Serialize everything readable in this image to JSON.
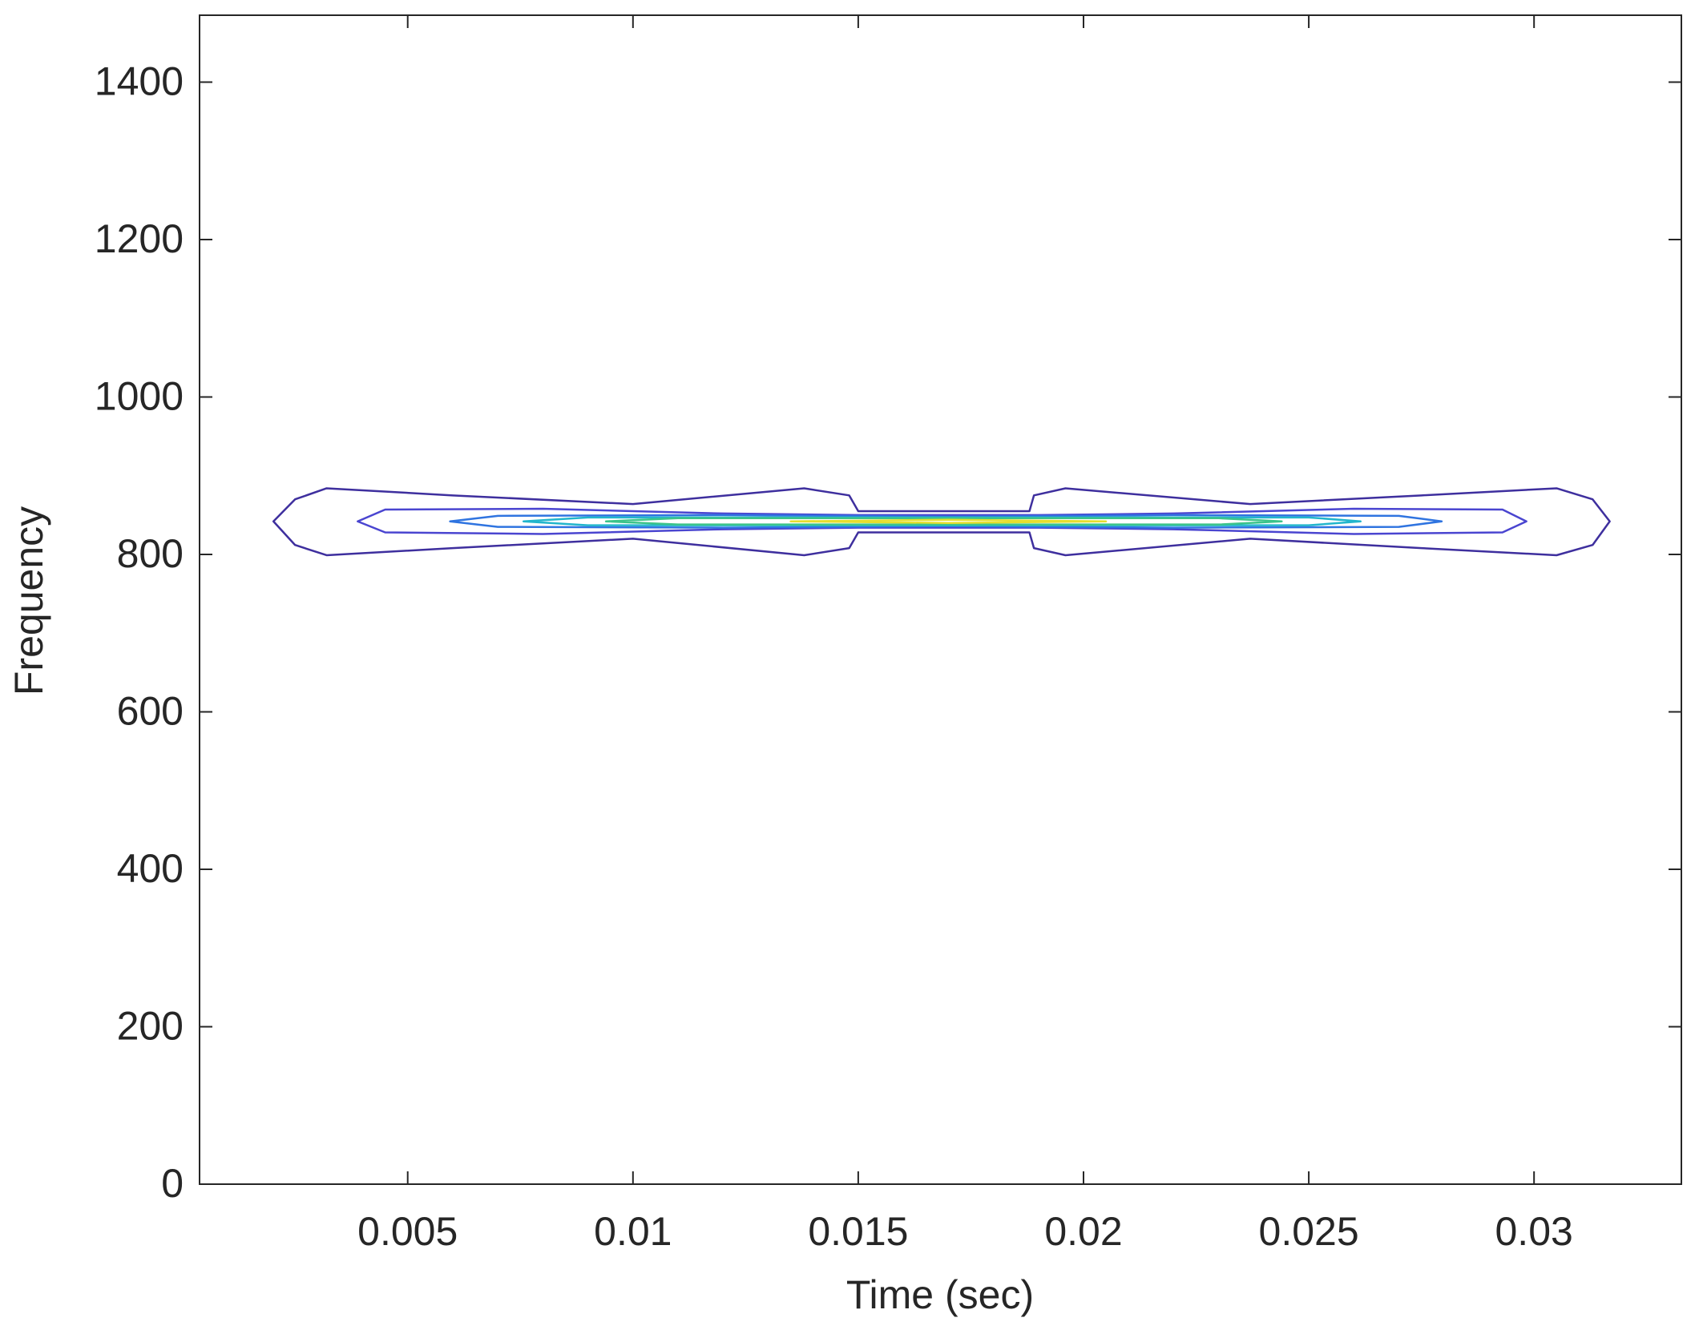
{
  "chart_data": {
    "type": "contour",
    "xlabel": "Time (sec)",
    "ylabel": "Frequency",
    "xlim": [
      0.00038,
      0.03327
    ],
    "ylim": [
      0,
      1485
    ],
    "xticks": [
      0.005,
      0.01,
      0.015,
      0.02,
      0.025,
      0.03
    ],
    "yticks": [
      0,
      200,
      400,
      600,
      800,
      1000,
      1200,
      1400
    ],
    "box": true,
    "series": [
      {
        "color": "#3e2f9e",
        "x": [
          0.00202,
          0.0025,
          0.0032,
          0.006,
          0.01,
          0.0138,
          0.0148,
          0.015,
          0.0188,
          0.0189,
          0.0196,
          0.0237,
          0.0275,
          0.0305,
          0.0313,
          0.03168,
          0.0313,
          0.0305,
          0.0275,
          0.0237,
          0.0196,
          0.0189,
          0.0188,
          0.015,
          0.0148,
          0.0138,
          0.01,
          0.006,
          0.0032,
          0.0025
        ],
        "y": [
          842,
          870,
          884,
          875,
          864,
          884,
          875,
          855,
          855,
          875,
          884,
          864,
          875,
          884,
          870,
          842,
          812,
          799,
          808,
          820,
          799,
          808,
          828,
          828,
          808,
          799,
          820,
          808,
          799,
          812
        ]
      },
      {
        "color": "#4a45d0",
        "x": [
          0.00389,
          0.0045,
          0.008,
          0.012,
          0.015,
          0.019,
          0.022,
          0.026,
          0.0293,
          0.02983,
          0.0293,
          0.026,
          0.022,
          0.019,
          0.015,
          0.012,
          0.008,
          0.0045
        ],
        "y": [
          842,
          857,
          858,
          852,
          850,
          850,
          852,
          858,
          857,
          842,
          828,
          826,
          832,
          834,
          834,
          832,
          826,
          828
        ]
      },
      {
        "color": "#2f74e0",
        "x": [
          0.00594,
          0.007,
          0.012,
          0.017,
          0.022,
          0.027,
          0.02795,
          0.027,
          0.022,
          0.017,
          0.012,
          0.007
        ],
        "y": [
          842,
          849,
          850,
          848,
          850,
          849,
          842,
          835,
          834,
          836,
          834,
          835
        ]
      },
      {
        "color": "#22b6cc",
        "x": [
          0.00757,
          0.009,
          0.017,
          0.025,
          0.02615,
          0.025,
          0.017,
          0.009
        ],
        "y": [
          842,
          847,
          847,
          847,
          842,
          837,
          837,
          837
        ]
      },
      {
        "color": "#3cc48a",
        "x": [
          0.0094,
          0.011,
          0.017,
          0.023,
          0.0244,
          0.023,
          0.017,
          0.011
        ],
        "y": [
          842,
          846,
          846,
          846,
          842,
          838,
          838,
          838
        ]
      },
      {
        "color": "#e6de2e",
        "x": [
          0.0135,
          0.017,
          0.0205,
          0.017
        ],
        "y": [
          842,
          844,
          842,
          840
        ]
      }
    ]
  }
}
